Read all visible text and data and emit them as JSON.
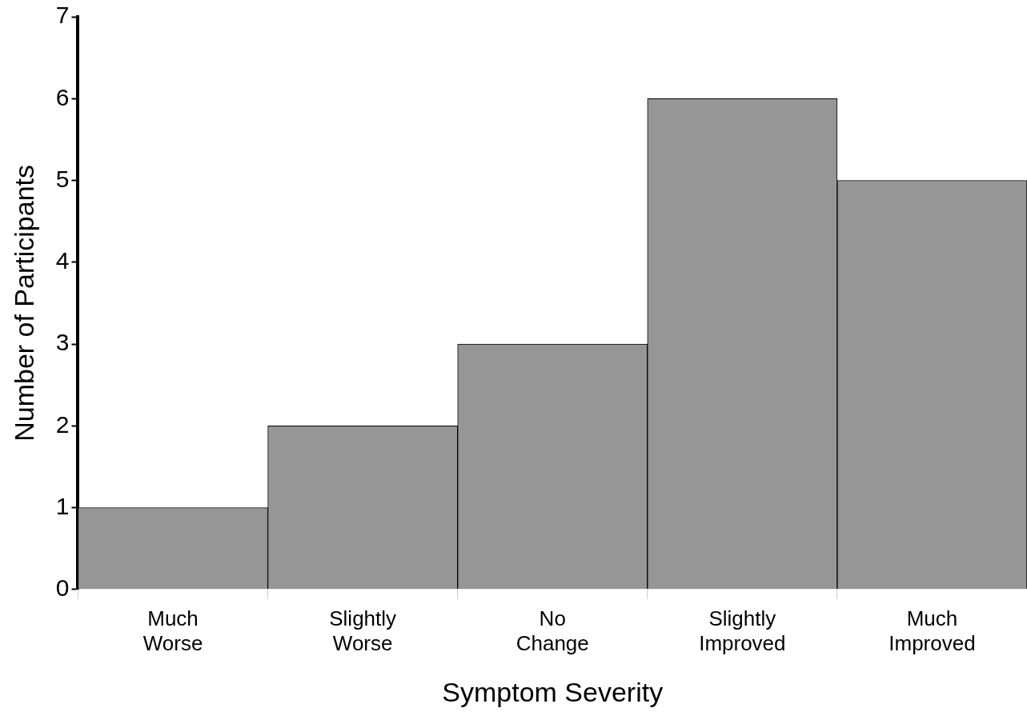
{
  "chart_data": {
    "type": "bar",
    "xlabel": "Symptom Severity",
    "ylabel": "Number of Participants",
    "categories": [
      "Much Worse",
      "Slightly Worse",
      "No Change",
      "Slightly Improved",
      "Much Improved"
    ],
    "values": [
      1,
      2,
      3,
      6,
      5
    ],
    "color": "#969696",
    "ylim": [
      0,
      7
    ],
    "yticks": [
      0,
      1,
      2,
      3,
      4,
      5,
      6,
      7
    ],
    "grid": false,
    "legend": false
  }
}
